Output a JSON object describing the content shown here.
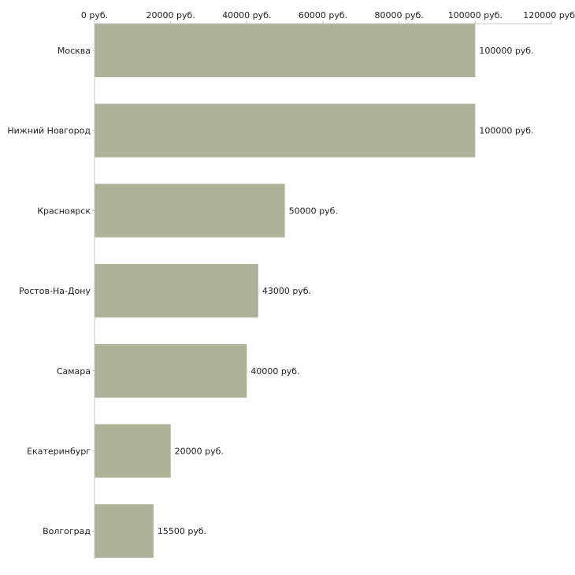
{
  "chart_data": {
    "type": "bar",
    "orientation": "horizontal",
    "title": "",
    "xlabel": "",
    "ylabel": "",
    "categories": [
      "Москва",
      "Нижний Новгород",
      "Красноярск",
      "Ростов-На-Дону",
      "Самара",
      "Екатеринбург",
      "Волгоград"
    ],
    "values": [
      100000,
      100000,
      50000,
      43000,
      40000,
      20000,
      15500
    ],
    "value_labels": [
      "100000 руб.",
      "100000 руб.",
      "50000 руб.",
      "43000 руб.",
      "40000 руб.",
      "20000 руб.",
      "15500 руб."
    ],
    "xlim": [
      0,
      120000
    ],
    "ticks": [
      0,
      20000,
      40000,
      60000,
      80000,
      100000,
      120000
    ],
    "tick_labels": [
      "0 руб.",
      "20000 руб.",
      "40000 руб.",
      "60000 руб.",
      "80000 руб.",
      "100000 руб.",
      "120000 руб"
    ],
    "axis_position": "top",
    "grid": false,
    "legend": "none",
    "bar_color": "#adb398",
    "axis_color": "#c8c8c8"
  }
}
